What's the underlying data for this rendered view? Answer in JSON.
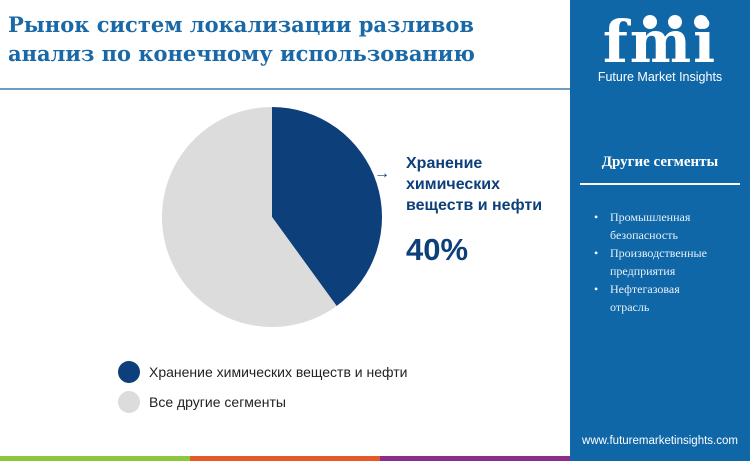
{
  "title": [
    "Рынок систем локализации разливов",
    "анализ по конечному использованию"
  ],
  "brand": {
    "logo_text": "fmi",
    "name": "Future Market Insights",
    "website": "www.futuremarketinsights.com"
  },
  "panel": {
    "title": "Другие сегменты",
    "items": [
      "Промышленная безопасность",
      "Производственные предприятия",
      "Нефтегазовая отрасль"
    ]
  },
  "callout": {
    "label": "Хранение химических веществ и нефти",
    "value": "40%"
  },
  "chart_data": {
    "type": "pie",
    "categories": [
      "Хранение химических веществ и нефти",
      "Все другие сегменты"
    ],
    "values": [
      40,
      60
    ],
    "colors": [
      "#0d3f7a",
      "#dcdcdc"
    ],
    "legend": "bottom"
  },
  "colors": {
    "accent": "#1a69a6",
    "panel": "#0f67a8",
    "bars": [
      "#8dc63f",
      "#e55a26",
      "#8b2d8b"
    ]
  }
}
